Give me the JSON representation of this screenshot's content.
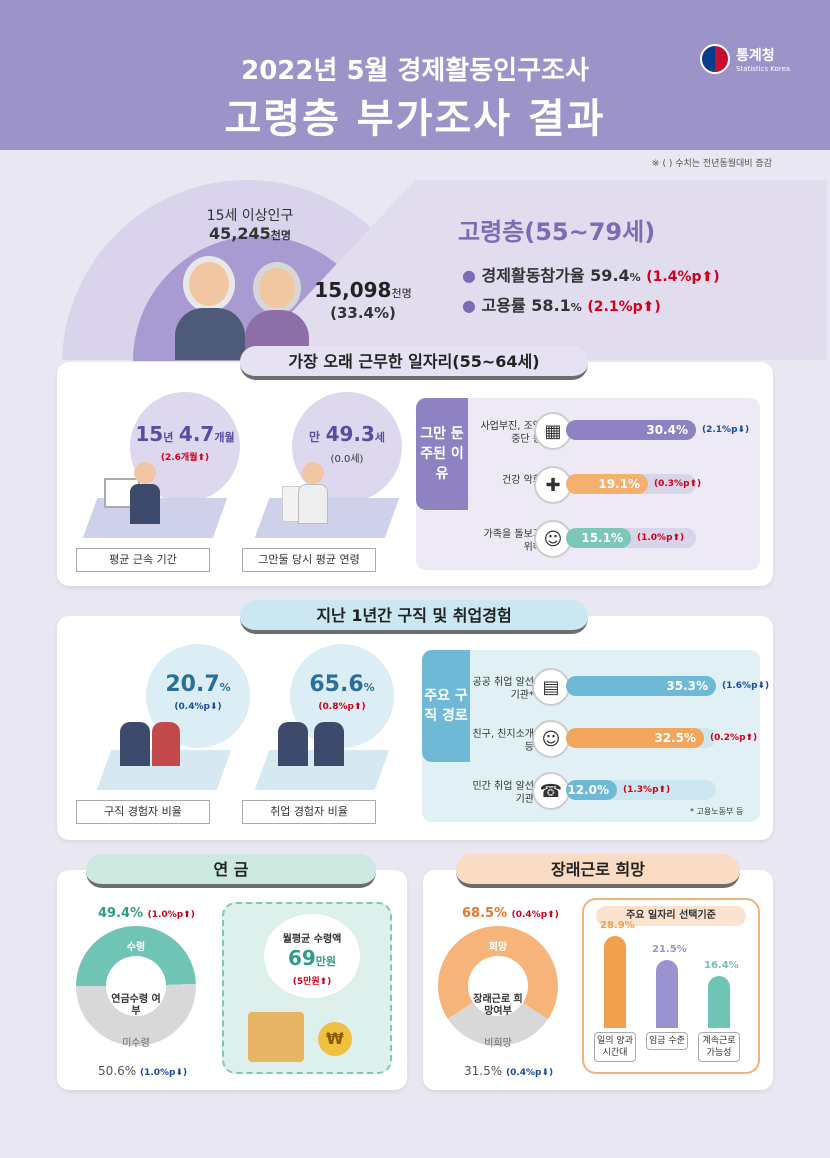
{
  "header": {
    "subtitle": "2022년 5월 경제활동인구조사",
    "title": "고령층 부가조사 결과",
    "agency": "통계청",
    "agency_en": "Statistics Korea"
  },
  "note": "※ ( ) 수치는 전년동월대비 증감",
  "population": {
    "label": "15세 이상인구",
    "total": "45,245",
    "total_unit": "천명",
    "elderly": "15,098",
    "elderly_unit": "천명",
    "elderly_share": "(33.4%)"
  },
  "elderly": {
    "title": "고령층(55~79세)",
    "participation_label": "경제활동참가율",
    "participation_value": "59.4",
    "participation_unit": "%",
    "participation_change": "(1.4%p",
    "employment_label": "고용률",
    "employment_value": "58.1",
    "employment_unit": "%",
    "employment_change": "(2.1%p"
  },
  "longest_job": {
    "title": "가장 오래 근무한 일자리(55~64세)",
    "tenure": {
      "years": "15",
      "years_unit": "년",
      "months": "4.7",
      "months_unit": "개월",
      "change": "(2.6개월",
      "caption": "평균 근속 기간"
    },
    "age": {
      "prefix": "만",
      "value": "49.3",
      "unit": "세",
      "change": "(0.0세)",
      "caption": "그만둘 당시 평균 연령"
    },
    "reasons_label": "그만 둔 주된 이유",
    "reasons": [
      {
        "label": "사업부진, 조업중단 등",
        "value": "30.4%",
        "pct": 30.4,
        "change": "(2.1%p",
        "dir": "down"
      },
      {
        "label": "건강 악화",
        "value": "19.1%",
        "pct": 19.1,
        "change": "(0.3%p",
        "dir": "up"
      },
      {
        "label": "가족을 돌보기 위해",
        "value": "15.1%",
        "pct": 15.1,
        "change": "(1.0%p",
        "dir": "up"
      }
    ]
  },
  "job_search": {
    "title": "지난 1년간 구직 및 취업경험",
    "seek": {
      "value": "20.7",
      "unit": "%",
      "change": "(0.4%p",
      "caption": "구직 경험자 비율"
    },
    "employ": {
      "value": "65.6",
      "unit": "%",
      "change": "(0.8%p",
      "caption": "취업 경험자 비율"
    },
    "routes_label": "주요 구직 경로",
    "routes": [
      {
        "label": "공공 취업 알선기관*",
        "value": "35.3%",
        "pct": 35.3,
        "change": "(1.6%p",
        "dir": "down"
      },
      {
        "label": "친구, 친지소개 등",
        "value": "32.5%",
        "pct": 32.5,
        "change": "(0.2%p",
        "dir": "up"
      },
      {
        "label": "민간 취업 알선기관",
        "value": "12.0%",
        "pct": 12.0,
        "change": "(1.3%p",
        "dir": "up"
      }
    ],
    "footnote": "* 고용노동부 등"
  },
  "pension": {
    "title": "연 금",
    "receive_pct": "49.4%",
    "receive_change": "(1.0%p",
    "receive_label": "수령",
    "center_label": "연금수령 여부",
    "not_label": "미수령",
    "not_pct": "50.6%",
    "not_change": "(1.0%p",
    "monthly_label": "월평균 수령액",
    "monthly_value": "69",
    "monthly_unit": "만원",
    "monthly_change": "(5만원"
  },
  "work_hope": {
    "title": "장래근로 희망",
    "hope_pct": "68.5%",
    "hope_change": "(0.4%p",
    "hope_label": "희망",
    "center_label": "장래근로 희망여부",
    "no_label": "비희망",
    "no_pct": "31.5%",
    "no_change": "(0.4%p",
    "criteria_title": "주요 일자리 선택기준",
    "criteria": [
      {
        "label": "일의 양과 시간대",
        "value": "28.9%",
        "pct": 28.9,
        "color": "#f2a04d"
      },
      {
        "label": "임금 수준",
        "value": "21.5%",
        "pct": 21.5,
        "color": "#9b93cf"
      },
      {
        "label": "계속근로 가능성",
        "value": "16.4%",
        "pct": 16.4,
        "color": "#6fc4b5"
      }
    ]
  }
}
